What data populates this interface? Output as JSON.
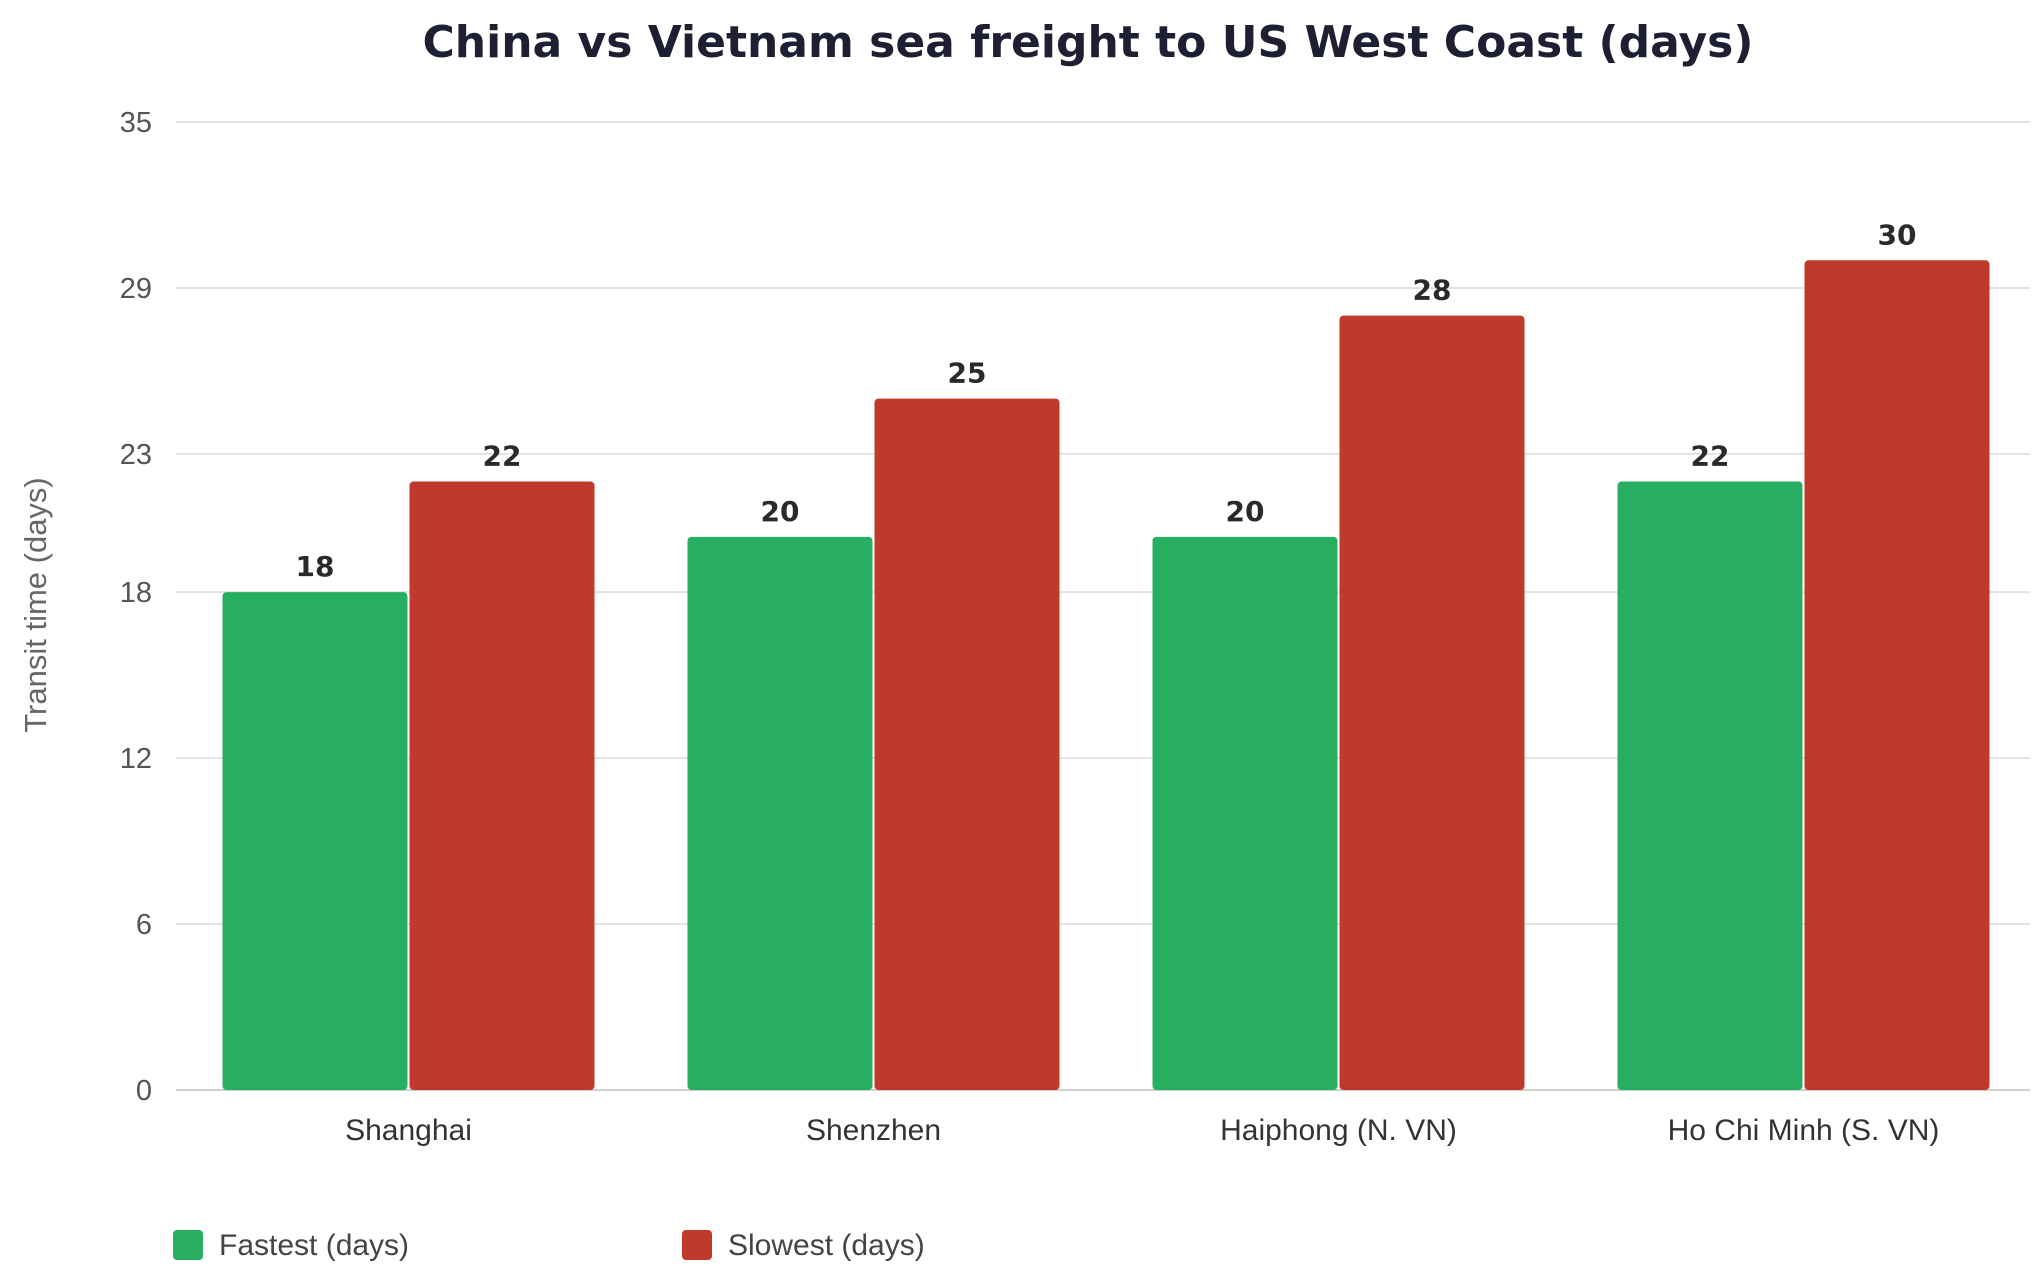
{
  "chart_data": {
    "type": "bar",
    "title": "China vs Vietnam sea freight to US West Coast (days)",
    "xlabel": "",
    "ylabel": "Transit time (days)",
    "categories": [
      "Shanghai",
      "Shenzhen",
      "Haiphong (N. VN)",
      "Ho Chi Minh (S. VN)"
    ],
    "series": [
      {
        "name": "Fastest (days)",
        "values": [
          18,
          20,
          20,
          22
        ],
        "color": "#27ae60"
      },
      {
        "name": "Slowest (days)",
        "values": [
          22,
          25,
          28,
          30
        ],
        "color": "#c0392b"
      }
    ],
    "ylim": [
      0,
      35
    ],
    "yticks": [
      0,
      6,
      12,
      18,
      23,
      29,
      35
    ],
    "grid": true,
    "legend": "bottom-left",
    "data_labels": true
  }
}
